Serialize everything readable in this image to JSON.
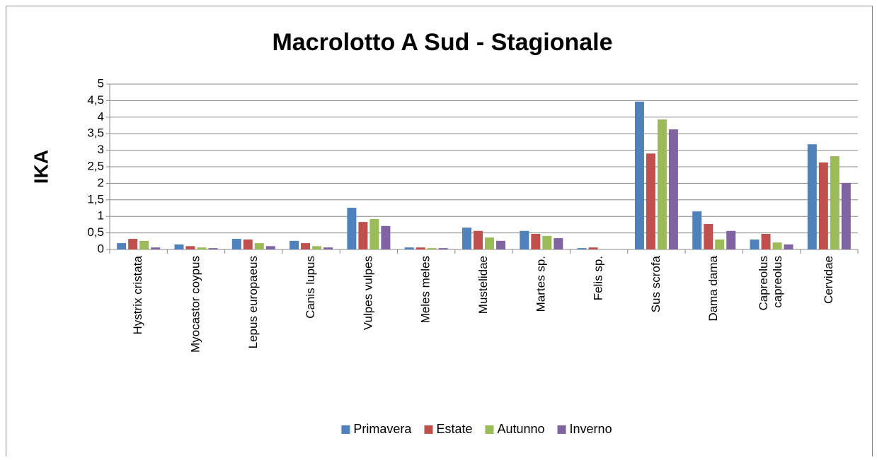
{
  "chart_data": {
    "type": "bar",
    "title": "Macrolotto A Sud - Stagionale",
    "y_label": "IKA",
    "categories": [
      "Hystrix cristata",
      "Myocastor coypus",
      "Lepus europaeus",
      "Canis lupus",
      "Vulpes vulpes",
      "Meles meles",
      "Mustelidae",
      "Martes sp.",
      "Felis sp.",
      "Sus scrofa",
      "Dama dama",
      "Capreolus capreolus",
      "Cervidae"
    ],
    "series": [
      {
        "name": "Primavera",
        "color": "#4f81bd",
        "values": [
          0.19,
          0.15,
          0.32,
          0.26,
          1.26,
          0.06,
          0.66,
          0.56,
          0.04,
          4.47,
          1.15,
          0.3,
          3.18
        ]
      },
      {
        "name": "Estate",
        "color": "#c0504d",
        "values": [
          0.32,
          0.1,
          0.3,
          0.19,
          0.83,
          0.06,
          0.56,
          0.47,
          0.06,
          2.9,
          0.77,
          0.47,
          2.63
        ]
      },
      {
        "name": "Autunno",
        "color": "#9bbb59",
        "values": [
          0.26,
          0.06,
          0.19,
          0.1,
          0.92,
          0.04,
          0.36,
          0.41,
          0,
          3.93,
          0.3,
          0.21,
          2.82
        ]
      },
      {
        "name": "Inverno",
        "color": "#8064a2",
        "values": [
          0.06,
          0.04,
          0.1,
          0.06,
          0.71,
          0.04,
          0.26,
          0.34,
          0,
          3.63,
          0.56,
          0.15,
          2.01
        ]
      }
    ],
    "ylim": [
      0,
      5
    ],
    "yticks": [
      0,
      {
        "value": 0.5,
        "label": "0,5"
      },
      1,
      {
        "value": 1.5,
        "label": "1,5"
      },
      2,
      {
        "value": 2.5,
        "label": "2,5"
      },
      3,
      {
        "value": 3.5,
        "label": "3,5"
      },
      4,
      {
        "value": 4.5,
        "label": "4,5"
      },
      5
    ],
    "grid": true,
    "legend": "bottom"
  }
}
